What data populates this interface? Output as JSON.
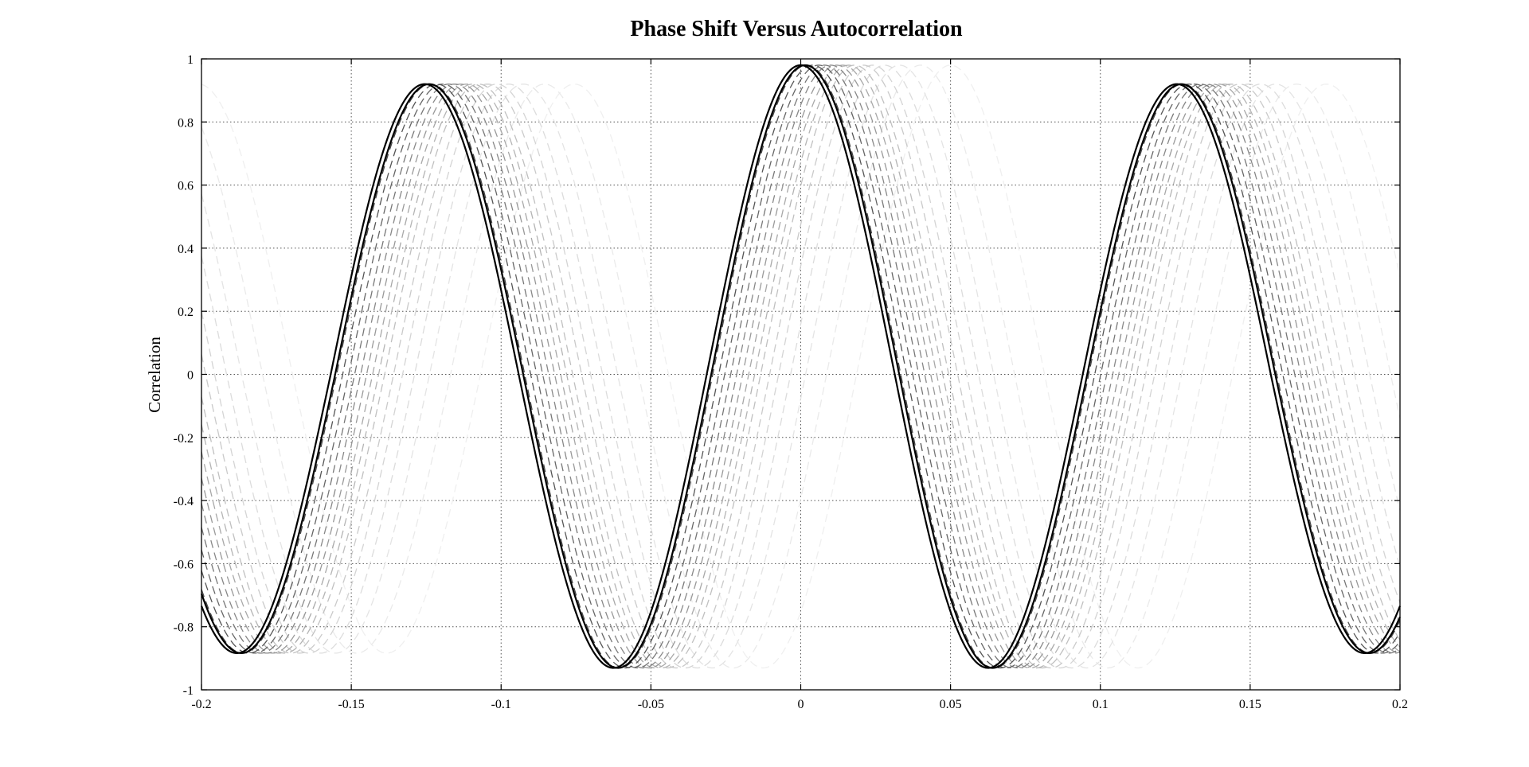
{
  "chart_data": {
    "type": "line",
    "title": "Phase Shift Versus Autocorrelation",
    "xlabel": "",
    "ylabel": "Correlation",
    "xlim": [
      -0.2,
      0.2
    ],
    "ylim": [
      -1,
      1
    ],
    "grid": true,
    "legend": "none",
    "x_ticks": [
      "-0.2",
      "-0.15",
      "-0.1",
      "-0.05",
      "0",
      "0.05",
      "0.1",
      "0.15",
      "0.2"
    ],
    "y_ticks": [
      "1",
      "0.8",
      "0.6",
      "0.4",
      "0.2",
      "0",
      "-0.2",
      "-0.4",
      "-0.6",
      "-0.8",
      "-1"
    ],
    "description_of_series": "Family of phase-shifted autocorrelation curves (period ~0.125); two solid black reference curves plus many dashed gray shifted curves fading with increasing shift.",
    "series": [
      {
        "style": "solid",
        "color": "#000000",
        "shift": 0.0,
        "peaks": [
          [
            -0.1235,
            0.92
          ],
          [
            0.0,
            0.98
          ],
          [
            0.125,
            0.92
          ]
        ],
        "troughs": [
          [
            -0.186,
            -0.88
          ],
          [
            -0.062,
            -0.95
          ],
          [
            0.0635,
            -0.95
          ],
          [
            0.189,
            -0.88
          ]
        ]
      },
      {
        "style": "solid",
        "color": "#000000",
        "shift": 0.0015,
        "peaks": [
          [
            -0.122,
            0.92
          ],
          [
            0.0015,
            0.98
          ],
          [
            0.1265,
            0.92
          ]
        ],
        "troughs": [
          [
            -0.1845,
            -0.88
          ],
          [
            -0.0605,
            -0.95
          ],
          [
            0.065,
            -0.95
          ],
          [
            0.1905,
            -0.88
          ]
        ]
      },
      {
        "style": "dashed",
        "color": "#444444",
        "shift": 0.002
      },
      {
        "style": "dashed",
        "color": "#555555",
        "shift": 0.004
      },
      {
        "style": "dashed",
        "color": "#666666",
        "shift": 0.006
      },
      {
        "style": "dashed",
        "color": "#777777",
        "shift": 0.008
      },
      {
        "style": "dashed",
        "color": "#888888",
        "shift": 0.01
      },
      {
        "style": "dashed",
        "color": "#999999",
        "shift": 0.012
      },
      {
        "style": "dashed",
        "color": "#a8a8a8",
        "shift": 0.014
      },
      {
        "style": "dashed",
        "color": "#b4b4b4",
        "shift": 0.016
      },
      {
        "style": "dashed",
        "color": "#c0c0c0",
        "shift": 0.018
      },
      {
        "style": "dashed",
        "color": "#cacaca",
        "shift": 0.021
      },
      {
        "style": "dashed",
        "color": "#d4d4d4",
        "shift": 0.024
      },
      {
        "style": "dashed",
        "color": "#dcdcdc",
        "shift": 0.028
      },
      {
        "style": "dashed",
        "color": "#e4e4e4",
        "shift": 0.033
      },
      {
        "style": "dashed",
        "color": "#eaeaea",
        "shift": 0.04
      },
      {
        "style": "dashed",
        "color": "#efefef",
        "shift": 0.05
      }
    ]
  }
}
